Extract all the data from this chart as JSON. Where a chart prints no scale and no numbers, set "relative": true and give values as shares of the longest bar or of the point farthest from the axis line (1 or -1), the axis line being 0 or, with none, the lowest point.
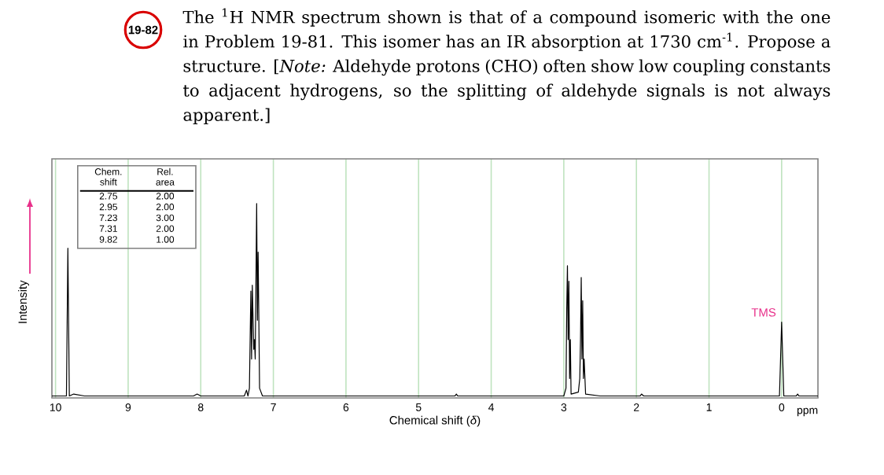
{
  "chart_data": {
    "type": "line",
    "relative": true,
    "title": "The $^{1}$H NMR spectrum shown is that of a compound isomeric with the one in Problem 19-81. This isomer has an IR absorption at 1730 cm$^{-1}$. Propose a structure. [*Note:* Aldehyde protons (CHO) often show low coupling constants to adjacent hydrogens, so the splitting of aldehyde signals is not always apparent.]",
    "xlabel": "Chemical shift (*δ*)",
    "ylabel": "Intensity",
    "xlim": [
      10.05,
      -0.5
    ],
    "xticks": [
      10,
      9,
      8,
      7,
      6,
      5,
      4,
      3,
      2,
      1,
      0
    ],
    "grid": "x",
    "series": [
      {
        "color": "#000000",
        "x": [
          10.05,
          9.85,
          9.83,
          9.81,
          9.75,
          9.6,
          8.1,
          8.05,
          8.0,
          7.4,
          7.37,
          7.35,
          7.33,
          7.31,
          7.3,
          7.29,
          7.27,
          7.26,
          7.25,
          7.23,
          7.22,
          7.21,
          7.19,
          7.15,
          7.0,
          4.5,
          4.48,
          4.46,
          3.0,
          2.97,
          2.96,
          2.95,
          2.94,
          2.93,
          2.92,
          2.91,
          2.9,
          2.8,
          2.78,
          2.77,
          2.76,
          2.75,
          2.74,
          2.73,
          2.72,
          2.7,
          2.5,
          1.95,
          1.93,
          1.9,
          0.03,
          0.0,
          -0.03,
          -0.2,
          -0.22,
          -0.24,
          -0.5
        ],
        "values": [
          0.01,
          0.01,
          0.77,
          0.01,
          0.02,
          0.01,
          0.01,
          0.02,
          0.01,
          0.01,
          0.04,
          0.01,
          0.05,
          0.55,
          0.2,
          0.58,
          0.25,
          0.3,
          0.2,
          1.0,
          0.4,
          0.75,
          0.05,
          0.01,
          0.01,
          0.01,
          0.02,
          0.01,
          0.01,
          0.05,
          0.45,
          0.68,
          0.3,
          0.6,
          0.1,
          0.3,
          0.02,
          0.03,
          0.1,
          0.3,
          0.62,
          0.2,
          0.5,
          0.1,
          0.2,
          0.02,
          0.01,
          0.01,
          0.02,
          0.01,
          0.01,
          0.39,
          0.01,
          0.01,
          0.02,
          0.01,
          0.01
        ]
      }
    ],
    "annotations": [
      "19-82",
      "ppm",
      "Chem. shift",
      "Rel. area",
      "2.75",
      "2.00",
      "2.95",
      "2.00",
      "7.23",
      "3.00",
      "7.31",
      "2.00",
      "9.82",
      "1.00",
      {
        "text": "TMS",
        "x": 0,
        "y": 0.39
      }
    ]
  }
}
